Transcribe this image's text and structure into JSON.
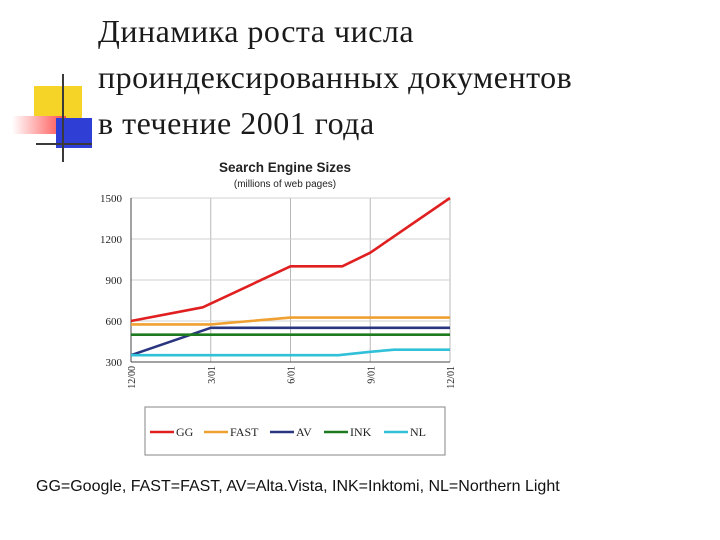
{
  "slide": {
    "title_lines": [
      "Динамика роста числа",
      "проиндексированных документов",
      "в течение 2001 года"
    ],
    "footnote": "GG=Google, FAST=FAST, AV=Alta.Vista, INK=Inktomi, NL=Northern Light",
    "decor_colors": {
      "yellow": "#f5d327",
      "red": "#ff4a4a",
      "blue": "#2f3fd6",
      "dark": "#3a3a3a"
    }
  },
  "chart_data": {
    "type": "line",
    "title": "Search Engine Sizes",
    "subtitle": "(millions of web pages)",
    "x": [
      "12/00",
      "3/01",
      "6/01",
      "9/01",
      "12/01"
    ],
    "ylim": [
      300,
      1500
    ],
    "yticks": [
      "1500",
      "1200",
      "900",
      "600",
      "300"
    ],
    "grid": true,
    "legend_position": "bottom",
    "series": [
      {
        "name": "GG",
        "color": "#e02020",
        "points": [
          [
            0,
            600
          ],
          [
            0.9,
            700
          ],
          [
            2,
            1000
          ],
          [
            2.65,
            1000
          ],
          [
            3,
            1100
          ],
          [
            4,
            1500
          ]
        ]
      },
      {
        "name": "FAST",
        "color": "#f0a030",
        "points": [
          [
            0,
            575
          ],
          [
            1,
            575
          ],
          [
            2,
            625
          ],
          [
            4,
            625
          ]
        ]
      },
      {
        "name": "AV",
        "color": "#2a3580",
        "points": [
          [
            0,
            350
          ],
          [
            1,
            550
          ],
          [
            4,
            550
          ]
        ]
      },
      {
        "name": "INK",
        "color": "#1e7a1e",
        "points": [
          [
            0,
            500
          ],
          [
            4,
            500
          ]
        ]
      },
      {
        "name": "NL",
        "color": "#30c0d8",
        "points": [
          [
            0,
            350
          ],
          [
            2.6,
            350
          ],
          [
            3,
            375
          ],
          [
            3.3,
            390
          ],
          [
            4,
            390
          ]
        ]
      }
    ]
  }
}
